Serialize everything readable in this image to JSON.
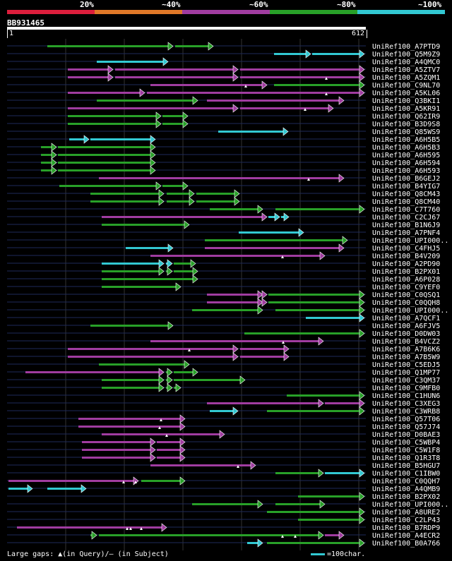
{
  "legend": {
    "labels": [
      "20%",
      "~40%",
      "~60%",
      "~80%",
      "~100%"
    ],
    "colors": [
      "#dc1e3c",
      "#e07828",
      "#a03ca0",
      "#28a028",
      "#32c8d2"
    ]
  },
  "query": {
    "id": "BB931465",
    "start": "1",
    "end": "612",
    "length": 612
  },
  "colors": {
    "green": "#28a028",
    "magenta": "#a03ca0",
    "cyan": "#32c8d2",
    "grid": "#333333",
    "track": "#1e2a5a"
  },
  "hits": [
    {
      "name": "UniRef100_A7PTD9",
      "segs": [
        [
          67,
          245,
          "g"
        ],
        [
          248,
          302,
          "g"
        ]
      ],
      "gaps": []
    },
    {
      "name": "UniRef100_Q5M9Z9",
      "segs": [
        [
          388,
          440,
          "c"
        ],
        [
          442,
          516,
          "c"
        ]
      ],
      "gaps": []
    },
    {
      "name": "UniRef100_A4QMC0",
      "segs": [
        [
          137,
          238,
          "c"
        ]
      ],
      "gaps": []
    },
    {
      "name": "UniRef100_A5ZTV7",
      "segs": [
        [
          96,
          160,
          "m"
        ],
        [
          163,
          337,
          "m"
        ],
        [
          340,
          516,
          "m"
        ]
      ],
      "gaps": []
    },
    {
      "name": "UniRef100_A5ZQM1",
      "segs": [
        [
          96,
          160,
          "m"
        ],
        [
          163,
          337,
          "m"
        ],
        [
          340,
          516,
          "m"
        ]
      ],
      "gaps": [
        462
      ]
    },
    {
      "name": "UniRef100_C9NL70",
      "segs": [
        [
          213,
          378,
          "m"
        ],
        [
          388,
          516,
          "g"
        ]
      ],
      "gaps": [
        348
      ]
    },
    {
      "name": "UniRef100_A5KL06",
      "segs": [
        [
          96,
          205,
          "m"
        ],
        [
          208,
          516,
          "m"
        ]
      ],
      "gaps": [
        462
      ]
    },
    {
      "name": "UniRef100_Q3BKI1",
      "segs": [
        [
          137,
          280,
          "g"
        ],
        [
          293,
          487,
          "m"
        ]
      ],
      "gaps": []
    },
    {
      "name": "UniRef100_A5KR91",
      "segs": [
        [
          96,
          337,
          "m"
        ],
        [
          340,
          472,
          "m"
        ]
      ],
      "gaps": [
        432
      ]
    },
    {
      "name": "UniRef100_Q62IR9",
      "segs": [
        [
          96,
          228,
          "g"
        ],
        [
          230,
          266,
          "g"
        ]
      ],
      "gaps": []
    },
    {
      "name": "UniRef100_B3D9S8",
      "segs": [
        [
          96,
          228,
          "g"
        ],
        [
          230,
          266,
          "g"
        ]
      ],
      "gaps": []
    },
    {
      "name": "UniRef100_Q85WS9",
      "segs": [
        [
          309,
          408,
          "c"
        ]
      ],
      "gaps": []
    },
    {
      "name": "UniRef100_A6H5B5",
      "segs": [
        [
          98,
          126,
          "c"
        ],
        [
          128,
          220,
          "c"
        ]
      ],
      "gaps": []
    },
    {
      "name": "UniRef100_A6H5B3",
      "segs": [
        [
          58,
          80,
          "g"
        ],
        [
          82,
          220,
          "g"
        ]
      ],
      "gaps": []
    },
    {
      "name": "UniRef100_A6H595",
      "segs": [
        [
          58,
          80,
          "g"
        ],
        [
          82,
          220,
          "g"
        ]
      ],
      "gaps": []
    },
    {
      "name": "UniRef100_A6H594",
      "segs": [
        [
          58,
          80,
          "g"
        ],
        [
          82,
          220,
          "g"
        ]
      ],
      "gaps": []
    },
    {
      "name": "UniRef100_A6H593",
      "segs": [
        [
          58,
          80,
          "g"
        ],
        [
          82,
          220,
          "g"
        ]
      ],
      "gaps": []
    },
    {
      "name": "UniRef100_B6GEJ2",
      "segs": [
        [
          140,
          487,
          "m"
        ]
      ],
      "gaps": [
        437
      ]
    },
    {
      "name": "UniRef100_B4YIG7",
      "segs": [
        [
          84,
          228,
          "g"
        ],
        [
          230,
          266,
          "g"
        ]
      ],
      "gaps": []
    },
    {
      "name": "UniRef100_Q8CM43",
      "segs": [
        [
          128,
          232,
          "g"
        ],
        [
          236,
          275,
          "g"
        ],
        [
          278,
          339,
          "g"
        ]
      ],
      "gaps": []
    },
    {
      "name": "UniRef100_Q8CM40",
      "segs": [
        [
          128,
          232,
          "g"
        ],
        [
          236,
          275,
          "g"
        ],
        [
          278,
          339,
          "g"
        ]
      ],
      "gaps": []
    },
    {
      "name": "UniRef100_C7T760",
      "segs": [
        [
          297,
          372,
          "g"
        ],
        [
          390,
          516,
          "g"
        ]
      ],
      "gaps": []
    },
    {
      "name": "UniRef100_C2CJ67",
      "segs": [
        [
          144,
          378,
          "m"
        ],
        [
          380,
          396,
          "c"
        ],
        [
          398,
          409,
          "c"
        ]
      ],
      "gaps": []
    },
    {
      "name": "UniRef100_B1N6J9",
      "segs": [
        [
          144,
          268,
          "g"
        ]
      ],
      "gaps": []
    },
    {
      "name": "UniRef100_A7PNF4",
      "segs": [
        [
          338,
          430,
          "c"
        ]
      ],
      "gaps": []
    },
    {
      "name": "UniRef100_UPI000..",
      "segs": [
        [
          290,
          492,
          "g"
        ]
      ],
      "gaps": []
    },
    {
      "name": "UniRef100_C4FHJ5",
      "segs": [
        [
          178,
          245,
          "c"
        ],
        [
          290,
          487,
          "m"
        ]
      ],
      "gaps": []
    },
    {
      "name": "UniRef100_B4V209",
      "segs": [
        [
          213,
          460,
          "m"
        ]
      ],
      "gaps": [
        400
      ]
    },
    {
      "name": "UniRef100_A2PD90",
      "segs": [
        [
          144,
          232,
          "c"
        ],
        [
          235,
          244,
          "c"
        ],
        [
          246,
          277,
          "g"
        ]
      ],
      "gaps": []
    },
    {
      "name": "UniRef100_B2PX01",
      "segs": [
        [
          144,
          232,
          "g"
        ],
        [
          235,
          244,
          "g"
        ],
        [
          246,
          280,
          "g"
        ]
      ],
      "gaps": []
    },
    {
      "name": "UniRef100_A6P028",
      "segs": [
        [
          144,
          280,
          "g"
        ]
      ],
      "gaps": []
    },
    {
      "name": "UniRef100_C9YEF0",
      "segs": [
        [
          144,
          256,
          "g"
        ]
      ],
      "gaps": []
    },
    {
      "name": "UniRef100_C0QSQ1",
      "segs": [
        [
          293,
          372,
          "m"
        ],
        [
          375,
          378,
          "m"
        ],
        [
          380,
          516,
          "g"
        ]
      ],
      "gaps": []
    },
    {
      "name": "UniRef100_C0QQH8",
      "segs": [
        [
          293,
          372,
          "m"
        ],
        [
          375,
          378,
          "m"
        ],
        [
          380,
          516,
          "g"
        ]
      ],
      "gaps": []
    },
    {
      "name": "UniRef100_UPI000..",
      "segs": [
        [
          272,
          372,
          "g"
        ],
        [
          390,
          516,
          "g"
        ]
      ],
      "gaps": []
    },
    {
      "name": "UniRef100_A7QCF1",
      "segs": [
        [
          433,
          516,
          "c"
        ]
      ],
      "gaps": []
    },
    {
      "name": "UniRef100_A6FJV5",
      "segs": [
        [
          128,
          245,
          "g"
        ]
      ],
      "gaps": []
    },
    {
      "name": "UniRef100_D0DW03",
      "segs": [
        [
          346,
          516,
          "g"
        ]
      ],
      "gaps": []
    },
    {
      "name": "UniRef100_B4VCZ2",
      "segs": [
        [
          213,
          458,
          "m"
        ]
      ],
      "gaps": [
        401
      ]
    },
    {
      "name": "UniRef100_A7B6K6",
      "segs": [
        [
          96,
          337,
          "m"
        ],
        [
          340,
          409,
          "m"
        ]
      ],
      "gaps": [
        268
      ]
    },
    {
      "name": "UniRef100_A7B5W9",
      "segs": [
        [
          96,
          337,
          "m"
        ],
        [
          340,
          409,
          "m"
        ]
      ],
      "gaps": []
    },
    {
      "name": "UniRef100_C5EDJ5",
      "segs": [
        [
          140,
          268,
          "g"
        ]
      ],
      "gaps": []
    },
    {
      "name": "UniRef100_Q1MP77",
      "segs": [
        [
          36,
          232,
          "m"
        ],
        [
          235,
          244,
          "g"
        ],
        [
          246,
          280,
          "g"
        ]
      ],
      "gaps": []
    },
    {
      "name": "UniRef100_C3QM37",
      "segs": [
        [
          144,
          232,
          "g"
        ],
        [
          235,
          244,
          "g"
        ],
        [
          246,
          347,
          "g"
        ]
      ],
      "gaps": []
    },
    {
      "name": "UniRef100_C9MFB0",
      "segs": [
        [
          144,
          232,
          "g"
        ],
        [
          235,
          244,
          "g"
        ],
        [
          246,
          256,
          "g"
        ]
      ],
      "gaps": []
    },
    {
      "name": "UniRef100_C1HUN6",
      "segs": [
        [
          406,
          516,
          "g"
        ]
      ],
      "gaps": []
    },
    {
      "name": "UniRef100_C3XEG3",
      "segs": [
        [
          293,
          458,
          "m"
        ],
        [
          460,
          516,
          "m"
        ]
      ],
      "gaps": []
    },
    {
      "name": "UniRef100_C3WRB8",
      "segs": [
        [
          297,
          337,
          "c"
        ],
        [
          378,
          516,
          "g"
        ]
      ],
      "gaps": []
    },
    {
      "name": "UniRef100_Q57T06",
      "segs": [
        [
          111,
          262,
          "m"
        ]
      ],
      "gaps": [
        228
      ]
    },
    {
      "name": "UniRef100_Q57J74",
      "segs": [
        [
          111,
          262,
          "m"
        ]
      ],
      "gaps": [
        226
      ]
    },
    {
      "name": "UniRef100_D0BAE3",
      "segs": [
        [
          144,
          318,
          "m"
        ]
      ],
      "gaps": [
        236
      ]
    },
    {
      "name": "UniRef100_C5WBP4",
      "segs": [
        [
          116,
          220,
          "m"
        ],
        [
          222,
          262,
          "m"
        ]
      ],
      "gaps": []
    },
    {
      "name": "UniRef100_C5W1F8",
      "segs": [
        [
          116,
          220,
          "m"
        ],
        [
          222,
          262,
          "m"
        ]
      ],
      "gaps": []
    },
    {
      "name": "UniRef100_Q1R3T8",
      "segs": [
        [
          116,
          220,
          "m"
        ],
        [
          222,
          262,
          "m"
        ]
      ],
      "gaps": []
    },
    {
      "name": "UniRef100_B5HGU7",
      "segs": [
        [
          213,
          362,
          "m"
        ]
      ],
      "gaps": [
        337
      ]
    },
    {
      "name": "UniRef100_C1IBW0",
      "segs": [
        [
          390,
          458,
          "g"
        ],
        [
          460,
          516,
          "c"
        ]
      ],
      "gaps": []
    },
    {
      "name": "UniRef100_C0QQH7",
      "segs": [
        [
          12,
          196,
          "m"
        ],
        [
          200,
          262,
          "g"
        ]
      ],
      "gaps": [
        175,
        192
      ]
    },
    {
      "name": "UniRef100_A4QMB9",
      "segs": [
        [
          12,
          46,
          "c"
        ],
        [
          67,
          122,
          "c"
        ]
      ],
      "gaps": []
    },
    {
      "name": "UniRef100_B2PX02",
      "segs": [
        [
          422,
          516,
          "g"
        ]
      ],
      "gaps": []
    },
    {
      "name": "UniRef100_UPI000..",
      "segs": [
        [
          272,
          372,
          "g"
        ],
        [
          390,
          460,
          "g"
        ]
      ],
      "gaps": []
    },
    {
      "name": "UniRef100_A8URE2",
      "segs": [
        [
          378,
          516,
          "g"
        ]
      ],
      "gaps": []
    },
    {
      "name": "UniRef100_C2LP43",
      "segs": [
        [
          422,
          516,
          "g"
        ]
      ],
      "gaps": []
    },
    {
      "name": "UniRef100_B7RDP9",
      "segs": [
        [
          24,
          236,
          "m"
        ]
      ],
      "gaps": [
        180,
        185,
        200
      ]
    },
    {
      "name": "UniRef100_A4ECR2",
      "segs": [
        [
          128,
          137,
          "g"
        ],
        [
          140,
          458,
          "g"
        ],
        [
          460,
          487,
          "m"
        ]
      ],
      "gaps": [
        400,
        418
      ]
    },
    {
      "name": "UniRef100_B0A766",
      "segs": [
        [
          350,
          372,
          "c"
        ],
        [
          378,
          516,
          "g"
        ]
      ],
      "gaps": []
    }
  ],
  "footer": {
    "large_gaps": "Large gaps: ▲(in Query)/— (in Subject)",
    "scale": "=100char."
  }
}
